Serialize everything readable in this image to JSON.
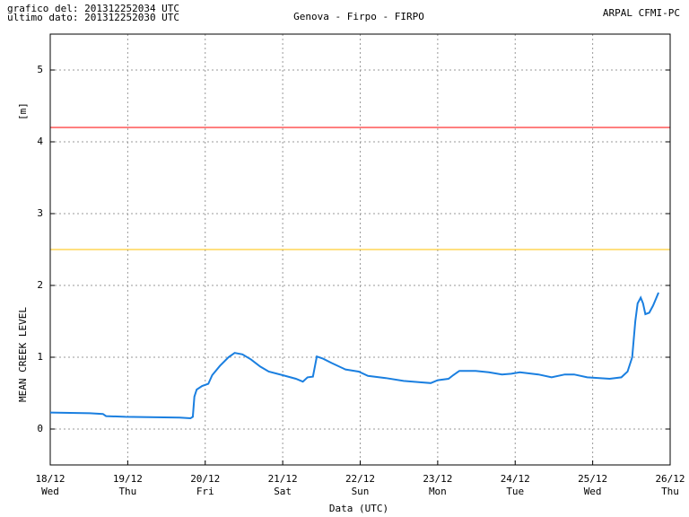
{
  "chart_data": {
    "type": "line",
    "title": "Genova - Firpo - FIRPO",
    "info_lines": [
      "grafico del: 201312252034 UTC",
      "ultimo dato: 201312252030 UTC"
    ],
    "source": "ARPAL CFMI-PC",
    "y_unit": "[m]",
    "y_label": "MEAN CREEK LEVEL",
    "x_label": "Data (UTC)",
    "xlim": [
      18,
      26
    ],
    "xticks": [
      {
        "value": 18,
        "label": "18/12"
      },
      {
        "value": 19,
        "label": "19/12"
      },
      {
        "value": 20,
        "label": "20/12"
      },
      {
        "value": 21,
        "label": "21/12"
      },
      {
        "value": 22,
        "label": "22/12"
      },
      {
        "value": 23,
        "label": "23/12"
      },
      {
        "value": 24,
        "label": "24/12"
      },
      {
        "value": 25,
        "label": "25/12"
      },
      {
        "value": 26,
        "label": "26/12"
      }
    ],
    "xtick_days": [
      "Wed",
      "Thu",
      "Fri",
      "Sat",
      "Sun",
      "Mon",
      "Tue",
      "Wed",
      "Thu"
    ],
    "ylim": [
      -0.5,
      5.5
    ],
    "yticks": [
      0,
      1,
      2,
      3,
      4,
      5
    ],
    "grid": true,
    "hlines": [
      {
        "value": 4.2,
        "color": "#ff0000"
      },
      {
        "value": 2.5,
        "color": "#ffc000"
      }
    ],
    "series": [
      {
        "color": "#1a7fe0",
        "x": [
          18.0,
          18.51,
          18.68,
          18.72,
          18.97,
          19.67,
          19.81,
          19.84,
          19.86,
          19.89,
          19.96,
          20.04,
          20.09,
          20.19,
          20.3,
          20.38,
          20.48,
          20.59,
          20.71,
          20.82,
          21.0,
          21.17,
          21.26,
          21.32,
          21.39,
          21.44,
          21.52,
          21.63,
          21.81,
          21.98,
          22.1,
          22.33,
          22.56,
          22.79,
          22.91,
          23.0,
          23.14,
          23.2,
          23.28,
          23.49,
          23.66,
          23.83,
          23.95,
          24.06,
          24.3,
          24.47,
          24.64,
          24.76,
          24.93,
          25.22,
          25.37,
          25.45,
          25.51,
          25.55,
          25.58,
          25.62,
          25.65,
          25.68,
          25.73,
          25.78,
          25.85
        ],
        "values": [
          0.23,
          0.22,
          0.21,
          0.18,
          0.17,
          0.16,
          0.15,
          0.17,
          0.45,
          0.55,
          0.6,
          0.63,
          0.75,
          0.88,
          1.0,
          1.06,
          1.04,
          0.97,
          0.87,
          0.8,
          0.75,
          0.7,
          0.66,
          0.72,
          0.73,
          1.01,
          0.98,
          0.92,
          0.83,
          0.8,
          0.74,
          0.71,
          0.67,
          0.65,
          0.64,
          0.68,
          0.7,
          0.75,
          0.81,
          0.81,
          0.79,
          0.76,
          0.77,
          0.79,
          0.76,
          0.72,
          0.76,
          0.76,
          0.72,
          0.7,
          0.72,
          0.8,
          1.0,
          1.5,
          1.75,
          1.83,
          1.75,
          1.6,
          1.62,
          1.72,
          1.9
        ]
      }
    ]
  }
}
